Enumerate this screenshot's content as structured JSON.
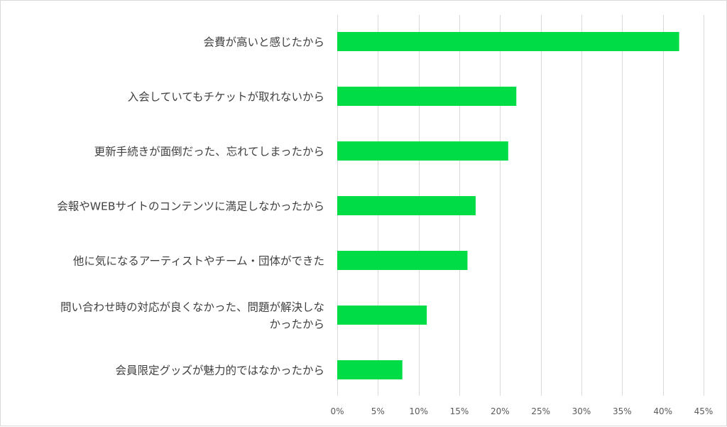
{
  "chart_data": {
    "type": "bar",
    "orientation": "horizontal",
    "title": "",
    "xlabel": "",
    "ylabel": "",
    "categories": [
      "会費が高いと感じたから",
      "入会していてもチケットが取れないから",
      "更新手続きが面倒だった、忘れてしまったから",
      "会報やWEBサイトのコンテンツに満足しなかったから",
      "他に気になるアーティストやチーム・団体ができた",
      "問い合わせ時の対応が良くなかった、問題が解決しなかったから",
      "会員限定グッズが魅力的ではなかったから"
    ],
    "category_lines": [
      [
        "会費が高いと感じたから"
      ],
      [
        "入会していてもチケットが取れないから"
      ],
      [
        "更新手続きが面倒だった、忘れてしまったから"
      ],
      [
        "会報やWEBサイトのコンテンツに満足しなかったから"
      ],
      [
        "他に気になるアーティストやチーム・団体ができた"
      ],
      [
        "問い合わせ時の対応が良くなかった、問題が解決しな",
        "かったから"
      ],
      [
        "会員限定グッズが魅力的ではなかったから"
      ]
    ],
    "values": [
      42,
      22,
      21,
      17,
      16,
      11,
      8
    ],
    "value_unit": "%",
    "xlim": [
      0,
      45
    ],
    "ticks": [
      0,
      5,
      10,
      15,
      20,
      25,
      30,
      35,
      40,
      45
    ],
    "tick_labels": [
      "0%",
      "5%",
      "10%",
      "15%",
      "20%",
      "25%",
      "30%",
      "35%",
      "40%",
      "45%"
    ],
    "grid": true,
    "legend": "none",
    "bar_color": "#00dc46",
    "grid_color": "#d9d9d9"
  }
}
